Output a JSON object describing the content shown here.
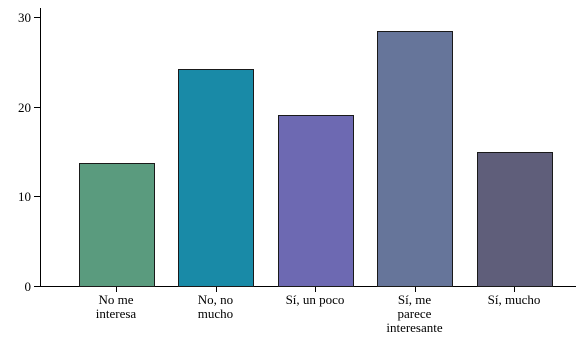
{
  "chart_data": {
    "type": "bar",
    "title": "",
    "xlabel": "",
    "ylabel": "",
    "categories": [
      [
        "No me",
        "interesa"
      ],
      [
        "No, no",
        "mucho"
      ],
      [
        "Sí, un poco"
      ],
      [
        "Sí, me",
        "parece",
        "interesante"
      ],
      [
        "Sí, mucho"
      ]
    ],
    "values": [
      13.7,
      24.2,
      19.1,
      28.4,
      14.9
    ],
    "colors": [
      "#5a9b7e",
      "#198aa7",
      "#6d69b2",
      "#66759a",
      "#5f5e7a"
    ],
    "ylim": [
      0,
      31
    ],
    "yticks": [
      0,
      10,
      20,
      30
    ],
    "grid": false,
    "legend": "none"
  }
}
